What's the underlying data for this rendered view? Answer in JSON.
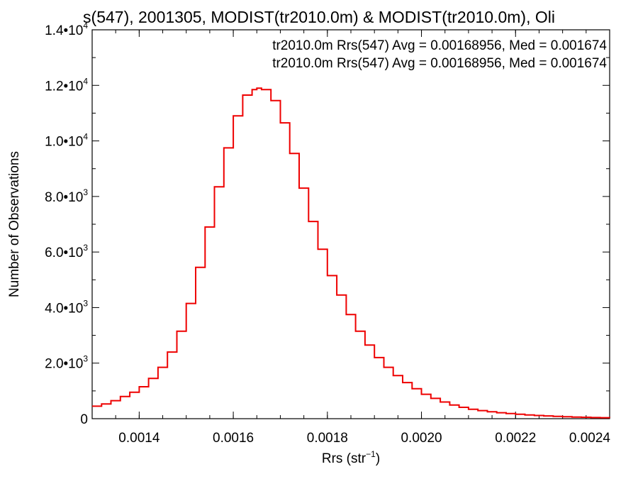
{
  "chart_data": {
    "type": "line",
    "title": "s(547), 2001305, MODIST(tr2010.0m) & MODIST(tr2010.0m), Oli",
    "xlabel_main": "Rrs (str",
    "xlabel_sup": "−1",
    "xlabel_close": ")",
    "ylabel": "Number of Observations",
    "xlim": [
      0.0013,
      0.0024
    ],
    "ylim": [
      0,
      14000
    ],
    "x_ticks": [
      0.0014,
      0.0016,
      0.0018,
      0.002,
      0.0022,
      0.0024
    ],
    "x_tick_labels": [
      "0.0014",
      "0.0016",
      "0.0018",
      "0.0020",
      "0.0022",
      "0.0024"
    ],
    "y_ticks": [
      0,
      2000,
      4000,
      6000,
      8000,
      10000,
      12000,
      14000
    ],
    "y_tick_labels": [
      {
        "mantissa": "0",
        "exp": ""
      },
      {
        "mantissa": "2.0•10",
        "exp": "3"
      },
      {
        "mantissa": "4.0•10",
        "exp": "3"
      },
      {
        "mantissa": "6.0•10",
        "exp": "3"
      },
      {
        "mantissa": "8.0•10",
        "exp": "3"
      },
      {
        "mantissa": "1.0•10",
        "exp": "4"
      },
      {
        "mantissa": "1.2•10",
        "exp": "4"
      },
      {
        "mantissa": "1.4•10",
        "exp": "4"
      }
    ],
    "grid": false,
    "annotations": [
      {
        "text": "tr2010.0m Rrs(547) Avg = 0.00168956, Med = 0.001674",
        "color": "#000000"
      },
      {
        "text": "tr2010.0m Rrs(547) Avg = 0.00168956, Med = 0.001674",
        "color": "#ee0000"
      }
    ],
    "series": [
      {
        "color": "#ee0000",
        "x": [
          0.0013,
          0.00132,
          0.00134,
          0.00136,
          0.00138,
          0.0014,
          0.00142,
          0.00144,
          0.00146,
          0.00148,
          0.0015,
          0.00152,
          0.00154,
          0.00156,
          0.00158,
          0.0016,
          0.00162,
          0.00164,
          0.00165,
          0.00166,
          0.00168,
          0.0017,
          0.00172,
          0.00174,
          0.00176,
          0.00178,
          0.0018,
          0.00182,
          0.00184,
          0.00186,
          0.00188,
          0.0019,
          0.00192,
          0.00194,
          0.00196,
          0.00198,
          0.002,
          0.00202,
          0.00204,
          0.00206,
          0.00208,
          0.0021,
          0.00212,
          0.00214,
          0.00216,
          0.00218,
          0.0022,
          0.00222,
          0.00224,
          0.00226,
          0.00228,
          0.0023,
          0.00232,
          0.00234,
          0.00236,
          0.00238,
          0.0024
        ],
        "y": [
          450,
          530,
          650,
          800,
          950,
          1150,
          1450,
          1850,
          2400,
          3150,
          4150,
          5450,
          6900,
          8350,
          9750,
          10900,
          11650,
          11850,
          11900,
          11850,
          11450,
          10650,
          9550,
          8300,
          7100,
          6100,
          5150,
          4450,
          3750,
          3150,
          2650,
          2200,
          1850,
          1550,
          1300,
          1080,
          880,
          730,
          600,
          490,
          410,
          340,
          290,
          250,
          215,
          185,
          160,
          135,
          115,
          100,
          85,
          72,
          60,
          50,
          40,
          35,
          30
        ]
      }
    ]
  }
}
